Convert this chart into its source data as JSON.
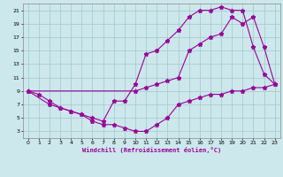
{
  "xlabel": "Windchill (Refroidissement éolien,°C)",
  "bg_color": "#cce8ec",
  "grid_color": "#aacccc",
  "line_color": "#990099",
  "xlim": [
    -0.5,
    23.5
  ],
  "ylim": [
    2,
    22
  ],
  "xticks": [
    0,
    1,
    2,
    3,
    4,
    5,
    6,
    7,
    8,
    9,
    10,
    11,
    12,
    13,
    14,
    15,
    16,
    17,
    18,
    19,
    20,
    21,
    22,
    23
  ],
  "yticks": [
    3,
    5,
    7,
    9,
    11,
    13,
    15,
    17,
    19,
    21
  ],
  "line1_x": [
    0,
    1,
    2,
    3,
    4,
    5,
    6,
    7,
    8,
    9,
    10,
    11,
    12,
    13,
    14,
    15,
    16,
    17,
    18,
    19,
    20,
    21,
    22,
    23
  ],
  "line1_y": [
    9,
    8.5,
    7.5,
    6.5,
    6,
    5.5,
    4.5,
    4,
    4,
    3.5,
    3,
    3,
    4,
    5,
    7,
    7.5,
    8,
    8.5,
    8.5,
    9,
    9,
    9.5,
    9.5,
    10
  ],
  "line2_x": [
    0,
    2,
    3,
    4,
    5,
    6,
    7,
    8,
    9,
    10,
    11,
    12,
    13,
    14,
    15,
    16,
    17,
    18,
    19,
    20,
    21,
    22,
    23
  ],
  "line2_y": [
    9,
    7,
    6.5,
    6,
    5.5,
    5,
    4.5,
    7.5,
    7.5,
    10,
    14.5,
    15,
    16.5,
    18,
    20,
    21,
    21,
    21.5,
    21,
    21,
    15.5,
    11.5,
    10
  ],
  "line3_x": [
    0,
    10,
    11,
    12,
    13,
    14,
    15,
    16,
    17,
    18,
    19,
    20,
    21,
    22,
    23
  ],
  "line3_y": [
    9,
    9,
    9.5,
    10,
    10.5,
    11,
    15,
    16,
    17,
    17.5,
    20,
    19,
    20,
    15.5,
    10
  ]
}
